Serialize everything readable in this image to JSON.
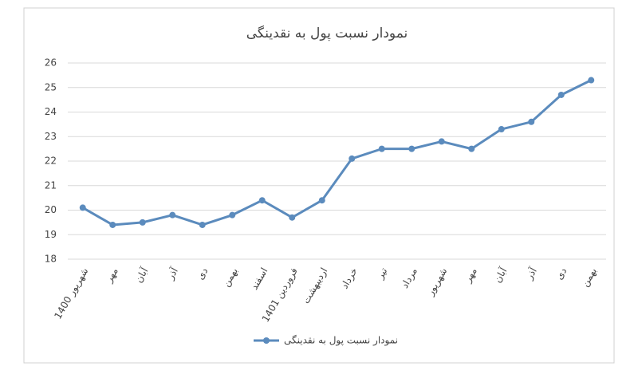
{
  "chart_data": {
    "type": "line",
    "title": "نمودار نسبت پول به نقدینگی",
    "categories": [
      "شهریور 1400",
      "مهر",
      "آبان",
      "آذر",
      "دی",
      "بهمن",
      "اسفند",
      "فروردین 1401",
      "اردیبهشت",
      "خرداد",
      "تیر",
      "مرداد",
      "شهریور",
      "مهر",
      "آبان",
      "آذر",
      "دی",
      "بهمن"
    ],
    "series": [
      {
        "name": "نمودار نسبت پول به نقدینگی",
        "color": "#5b8bbd",
        "values": [
          20.1,
          19.4,
          19.5,
          19.8,
          19.4,
          19.8,
          20.4,
          19.7,
          20.4,
          22.1,
          22.5,
          22.5,
          22.8,
          22.5,
          23.3,
          23.6,
          24.7,
          25.3
        ]
      }
    ],
    "ylim": [
      18,
      26
    ],
    "yticks": [
      18,
      19,
      20,
      21,
      22,
      23,
      24,
      25,
      26
    ],
    "grid": true,
    "legend": "bottom"
  }
}
